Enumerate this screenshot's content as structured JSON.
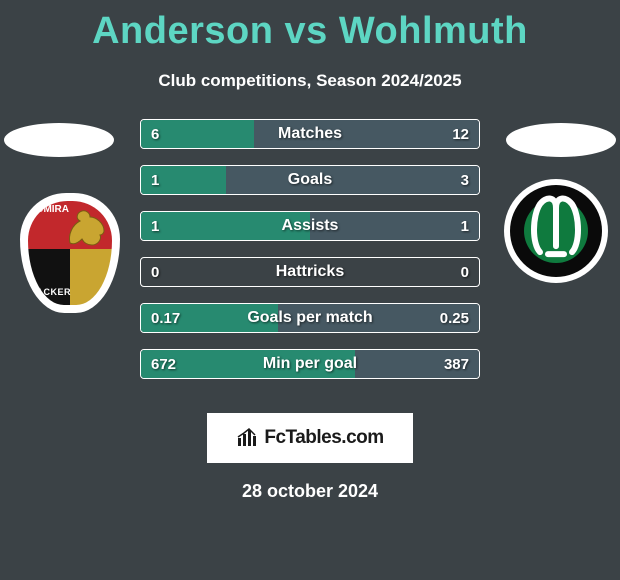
{
  "title_left": "Anderson",
  "title_vs": "vs",
  "title_right": "Wohlmuth",
  "title_color": "#5dd6c3",
  "subtitle": "Club competitions, Season 2024/2025",
  "background_color": "#3b4246",
  "bar_border_color": "#ffffff",
  "left_fill_color": "#278a70",
  "right_fill_color": "#465862",
  "text_color": "#ffffff",
  "footer_brand": "FcTables.com",
  "footer_date": "28 october 2024",
  "left_club": {
    "name": "Admira Wacker",
    "text_top": "ADMIRA",
    "text_bottom": "WACKER",
    "colors": {
      "red": "#c2282c",
      "black": "#111111",
      "gold": "#c9a531",
      "white": "#ffffff"
    }
  },
  "right_club": {
    "name": "SV Ried",
    "colors": {
      "white": "#ffffff",
      "black": "#0a0a0a",
      "green": "#0f7a3e"
    }
  },
  "rows": [
    {
      "label": "Matches",
      "left": "6",
      "right": "12",
      "left_num": 6,
      "right_num": 12
    },
    {
      "label": "Goals",
      "left": "1",
      "right": "3",
      "left_num": 1,
      "right_num": 3
    },
    {
      "label": "Assists",
      "left": "1",
      "right": "1",
      "left_num": 1,
      "right_num": 1
    },
    {
      "label": "Hattricks",
      "left": "0",
      "right": "0",
      "left_num": 0,
      "right_num": 0
    },
    {
      "label": "Goals per match",
      "left": "0.17",
      "right": "0.25",
      "left_num": 0.17,
      "right_num": 0.25
    },
    {
      "label": "Min per goal",
      "left": "672",
      "right": "387",
      "left_num": 672,
      "right_num": 387
    }
  ]
}
